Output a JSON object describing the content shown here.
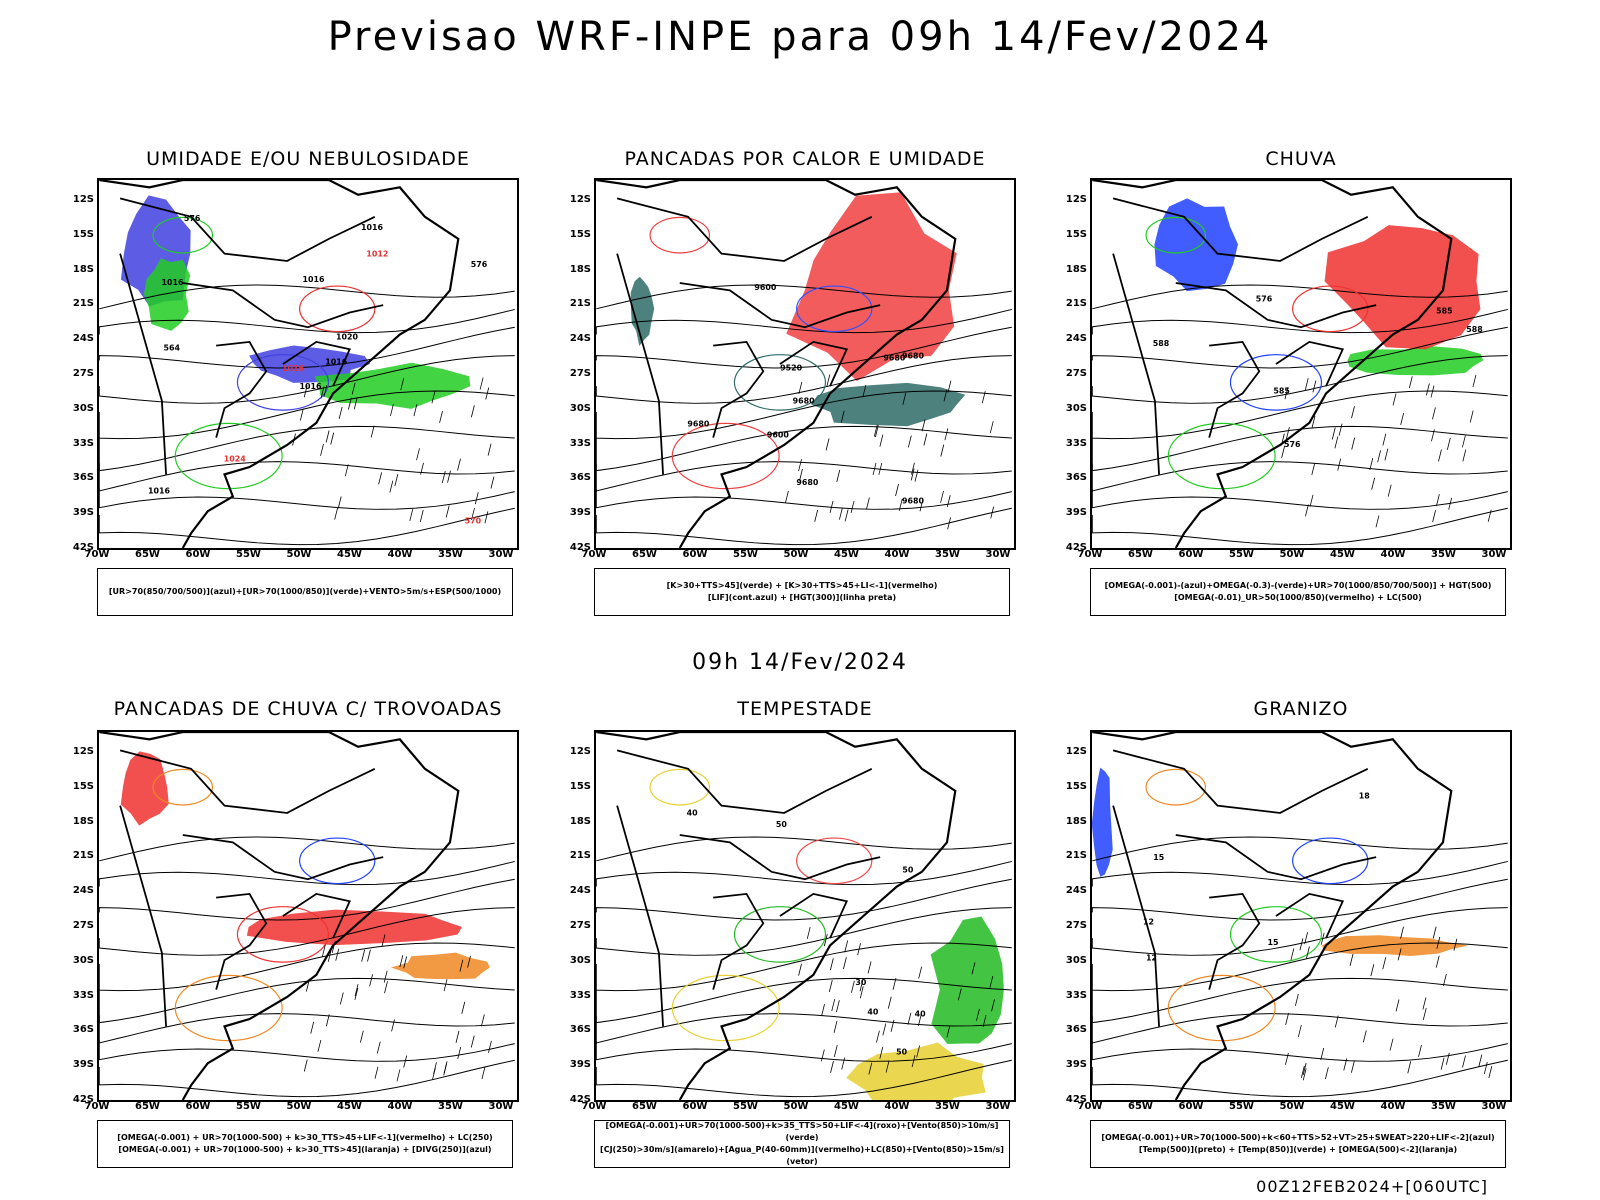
{
  "title": "Previsao WRF-INPE  para 09h 14/Fev/2024",
  "subtitle": "09h 14/Fev/2024",
  "footer": "00Z12FEB2024+[060UTC]",
  "lat_ticks": [
    "12S",
    "15S",
    "18S",
    "21S",
    "24S",
    "27S",
    "30S",
    "33S",
    "36S",
    "39S",
    "42S"
  ],
  "lon_ticks": [
    "70W",
    "65W",
    "60W",
    "55W",
    "50W",
    "45W",
    "40W",
    "35W",
    "30W"
  ],
  "panels": [
    {
      "title": "UMIDADE E/OU NEBULOSIDADE",
      "legend": [
        "[UR>70(850/700/500)](azul)+[UR>70(1000/850)](verde)+VENTO>5m/s+ESP(500/1000)"
      ],
      "colors": [
        "#4040e0",
        "#22cc22",
        "#e83030"
      ],
      "labels": [
        "1016",
        "1016",
        "1016",
        "1016",
        "1020",
        "1024",
        "1016",
        "1016",
        "1012",
        "1016",
        "576",
        "570",
        "564",
        "576"
      ]
    },
    {
      "title": "PANCADAS POR CALOR E UMIDADE",
      "legend": [
        "[K>30+TTS>45](verde)  +  [K>30+TTS>45+LI<-1](vermelho)",
        "[LIF](cont.azul)  +  [HGT(300)](linha preta)"
      ],
      "colors": [
        "#2e6b66",
        "#f04040",
        "#3050ff"
      ],
      "labels": [
        "9680",
        "9680",
        "9680",
        "9680",
        "9680",
        "9600",
        "9520",
        "9680",
        "9600"
      ]
    },
    {
      "title": "CHUVA",
      "legend": [
        "[OMEGA(-0.001)-(azul)+OMEGA(-0.3)-(verde)+UR>70(1000/850/700/500)]  +  HGT(500)",
        "[OMEGA(-0.01)_UR>50(1000/850)(vermelho)  +  LC(500)"
      ],
      "colors": [
        "#2040ff",
        "#22cc22",
        "#f03030"
      ],
      "labels": [
        "588",
        "585",
        "588",
        "585",
        "576",
        "576"
      ]
    },
    {
      "title": "PANCADAS DE CHUVA C/ TROVOADAS",
      "legend": [
        "[OMEGA(-0.001)  +  UR>70(1000-500)  +  k>30_TTS>45+LIF<-1](vermelho)  +  LC(250)",
        "[OMEGA(-0.001)  +  UR>70(1000-500)  +  k>30_TTS>45](laranja)  +  [DIVG(250)](azul)"
      ],
      "colors": [
        "#f03030",
        "#ee8822",
        "#2040ff"
      ],
      "labels": []
    },
    {
      "title": "TEMPESTADE",
      "legend": [
        "[OMEGA(-0.001)+UR>70(1000-500)+k>35_TTS>50+LIF<-4](roxo)+[Vento(850)>10m/s](verde)",
        "[CJ(250)>30m/s](amarelo)+[Agua_P(40-60mm)](vermelho)+LC(850)+[Vento(850)>15m/s](vetor)"
      ],
      "colors": [
        "#22bb22",
        "#e8d030",
        "#f04848"
      ],
      "labels": [
        "50",
        "50",
        "50",
        "40",
        "40",
        "30",
        "40"
      ]
    },
    {
      "title": "GRANIZO",
      "legend": [
        "[OMEGA(-0.001)+UR>70(1000-500)+k<60+TTS>52+VT>25+SWEAT>220+LIF<-2](azul)",
        "[Temp(500)](preto)  +  [Temp(850)](verde)  +  [OMEGA(500)<-2](laranja)"
      ],
      "colors": [
        "#22cc22",
        "#ee8822",
        "#2040ff"
      ],
      "labels": [
        "18",
        "15",
        "15",
        "12",
        "12"
      ]
    }
  ]
}
